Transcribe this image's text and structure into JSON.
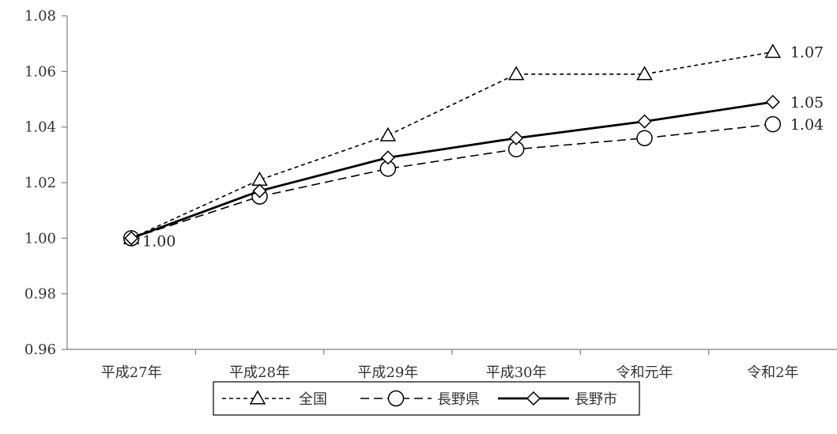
{
  "chart_data": {
    "type": "line",
    "categories": [
      "平成27年",
      "平成28年",
      "平成29年",
      "平成30年",
      "令和元年",
      "令和2年"
    ],
    "ylim": [
      0.96,
      1.08
    ],
    "yticks": [
      0.96,
      0.98,
      1.0,
      1.02,
      1.04,
      1.06,
      1.08
    ],
    "ytick_labels": [
      "0.96",
      "0.98",
      "1.00",
      "1.02",
      "1.04",
      "1.06",
      "1.08"
    ],
    "grid": false,
    "legend_position": "bottom",
    "series": [
      {
        "name": "全国",
        "values": [
          1.0,
          1.021,
          1.037,
          1.059,
          1.059,
          1.067
        ],
        "line_style": "short-dash",
        "marker": "triangle",
        "color": "#000000",
        "end_label": "1.07"
      },
      {
        "name": "長野県",
        "values": [
          1.0,
          1.015,
          1.025,
          1.032,
          1.036,
          1.041
        ],
        "line_style": "long-dash",
        "marker": "circle",
        "color": "#000000",
        "end_label": "1.04"
      },
      {
        "name": "長野市",
        "values": [
          1.0,
          1.017,
          1.029,
          1.036,
          1.042,
          1.049
        ],
        "line_style": "solid",
        "marker": "diamond",
        "color": "#000000",
        "end_label": "1.05"
      }
    ],
    "start_label": "1.00"
  }
}
